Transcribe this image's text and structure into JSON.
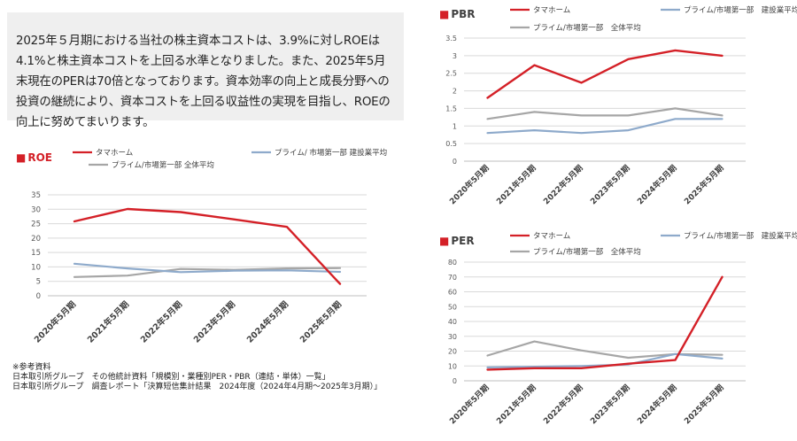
{
  "intro": {
    "text": "2025年５月期における当社の株主資本コストは、3.9%に対しROEは4.1%と株主資本コストを上回る水準となりました。また、2025年5月末現在のPERは70倍となっております。資本効率の向上と成長分野への投資の継続により、資本コストを上回る収益性の実現を目指し、ROEの向上に努めてまいります。"
  },
  "references": {
    "heading": "※参考資料",
    "line1": "日本取引所グループ　その他統計資料「規模別・業種別PER・PBR（連結・単体）一覧」",
    "line2": "日本取引所グループ　調査レポート「決算短信集計結果　2024年度（2024年4月期～2025年3月期）」"
  },
  "colors": {
    "tamahome": "#d42027",
    "construction": "#8eaacb",
    "all": "#a6a6a6",
    "title_marker": "#d42027",
    "grid": "#d9d9d9",
    "axis": "#bfbfbf",
    "tick_text": "#595959",
    "intro_bg": "#efefef"
  },
  "chart_data": [
    {
      "id": "roe",
      "type": "line",
      "title_marker": "■",
      "title": "ROE",
      "categories": [
        "2020年5月期",
        "2021年5月期",
        "2022年5月期",
        "2023年5月期",
        "2024年5月期",
        "2025年5月期"
      ],
      "series": [
        {
          "name": "タマホーム",
          "values": [
            25.8,
            30.1,
            29.0,
            26.5,
            23.9,
            4.1
          ]
        },
        {
          "name": "プライム/ 市場第一部 建設業平均",
          "values": [
            11.1,
            9.5,
            8.2,
            8.7,
            8.8,
            8.3
          ]
        },
        {
          "name": "プライム/市場第一部 全体平均",
          "values": [
            6.5,
            7.0,
            9.3,
            9.0,
            9.5,
            9.6
          ]
        }
      ],
      "ylim": [
        0,
        35
      ],
      "yticks": [
        0,
        5,
        10,
        15,
        20,
        25,
        30,
        35
      ],
      "grid": true,
      "legend_position": "top"
    },
    {
      "id": "pbr",
      "type": "line",
      "title_marker": "■",
      "title": "PBR",
      "categories": [
        "2020年5月期",
        "2021年5月期",
        "2022年5月期",
        "2023年5月期",
        "2024年5月期",
        "2025年5月期"
      ],
      "series": [
        {
          "name": "タマホーム",
          "values": [
            1.8,
            2.73,
            2.23,
            2.9,
            3.15,
            3.0
          ]
        },
        {
          "name": "プライム/市場第一部　建設業平均",
          "values": [
            0.8,
            0.88,
            0.8,
            0.88,
            1.2,
            1.2
          ]
        },
        {
          "name": "プライム/市場第一部　全体平均",
          "values": [
            1.2,
            1.4,
            1.3,
            1.3,
            1.5,
            1.3
          ]
        }
      ],
      "ylim": [
        0,
        3.5
      ],
      "yticks": [
        0,
        0.5,
        1,
        1.5,
        2,
        2.5,
        3,
        3.5
      ],
      "ytick_labels": [
        "0",
        "0.5",
        "1",
        "1.5",
        "2",
        "2.5",
        "3",
        "3.5"
      ],
      "grid": true,
      "legend_position": "top"
    },
    {
      "id": "per",
      "type": "line",
      "title_marker": "■",
      "title": "PER",
      "categories": [
        "2020年5月期",
        "2021年5月期",
        "2022年5月期",
        "2023年5月期",
        "2024年5月期",
        "2025年5月期"
      ],
      "series": [
        {
          "name": "タマホーム",
          "values": [
            7.5,
            8.5,
            8.5,
            11.5,
            14.0,
            70.0
          ]
        },
        {
          "name": "プライム/市場第一部　建設業平均",
          "values": [
            9.0,
            9.5,
            10.0,
            11.0,
            18.0,
            15.0
          ]
        },
        {
          "name": "プライム/市場第一部　全体平均",
          "values": [
            17.0,
            26.5,
            20.5,
            15.5,
            18.0,
            17.5
          ]
        }
      ],
      "ylim": [
        0,
        80
      ],
      "yticks": [
        0,
        10,
        20,
        30,
        40,
        50,
        60,
        70,
        80
      ],
      "grid": true,
      "legend_position": "top"
    }
  ]
}
